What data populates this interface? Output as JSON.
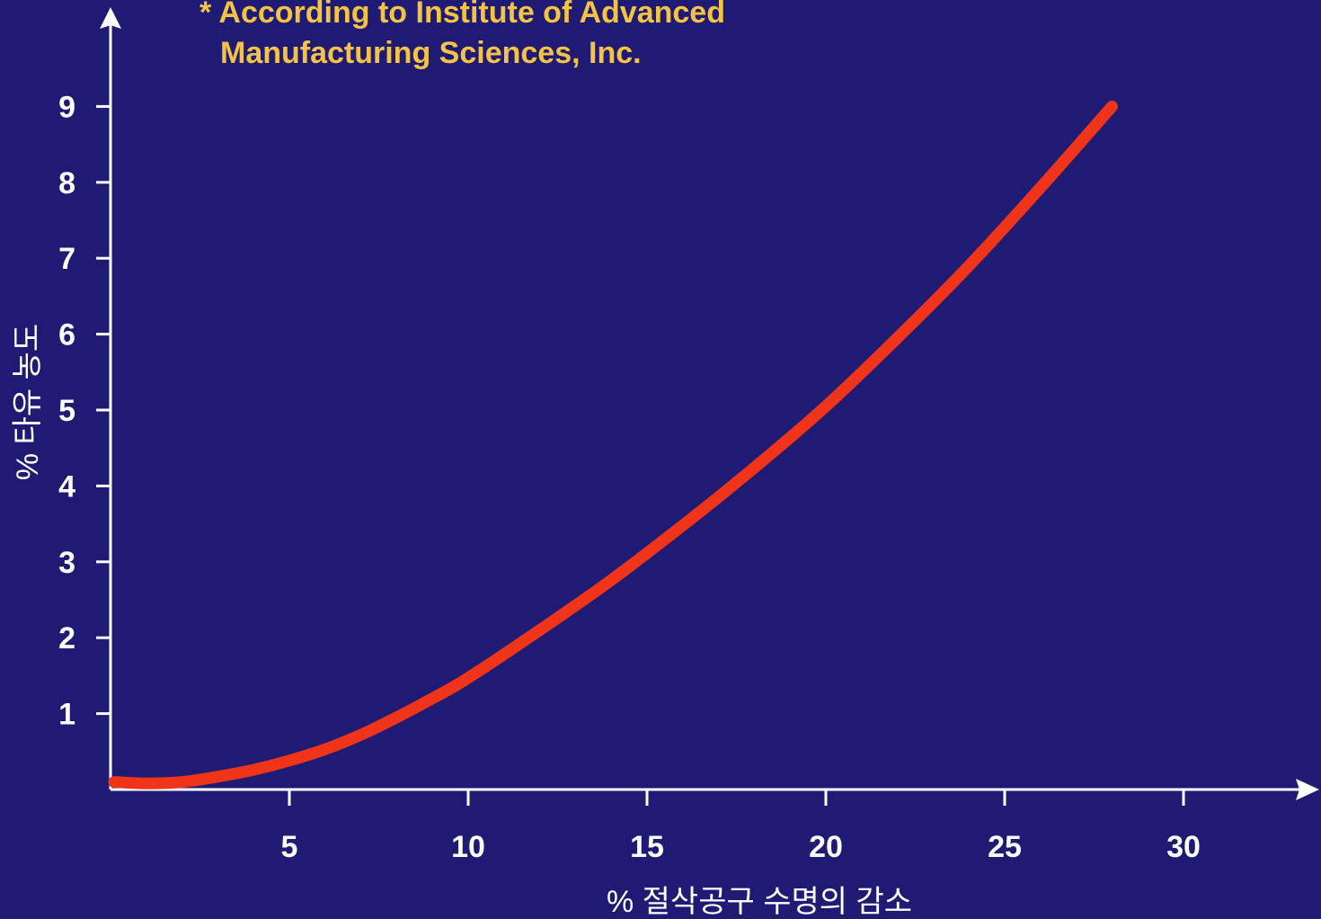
{
  "chart_data": {
    "type": "line",
    "title": "",
    "note": {
      "line1": "* According to Institute of Advanced",
      "line2": "Manufacturing Sciences, Inc."
    },
    "xlabel": "% 절삭공구 수명의 감소",
    "ylabel": "% 타유 농도",
    "xlim": [
      0,
      33
    ],
    "ylim": [
      0,
      9.5
    ],
    "xticks": [
      5,
      10,
      15,
      20,
      25,
      30
    ],
    "yticks": [
      1,
      2,
      3,
      4,
      5,
      6,
      7,
      8,
      9
    ],
    "grid": false,
    "legend": "none",
    "series": [
      {
        "x": [
          0.1,
          1,
          2,
          3,
          4,
          5,
          6,
          7,
          8,
          9,
          10,
          12,
          14,
          16,
          18,
          20,
          22,
          24,
          26,
          28
        ],
        "y": [
          0.1,
          0.08,
          0.1,
          0.17,
          0.26,
          0.38,
          0.53,
          0.72,
          0.95,
          1.2,
          1.47,
          2.1,
          2.76,
          3.48,
          4.24,
          5.05,
          5.95,
          6.9,
          7.93,
          9.0
        ],
        "color": "#f0341a"
      }
    ],
    "colors": {
      "background": "#1f1b75",
      "axis": "#ffffff",
      "note": "#f5c343",
      "curve": "#f0341a"
    }
  }
}
